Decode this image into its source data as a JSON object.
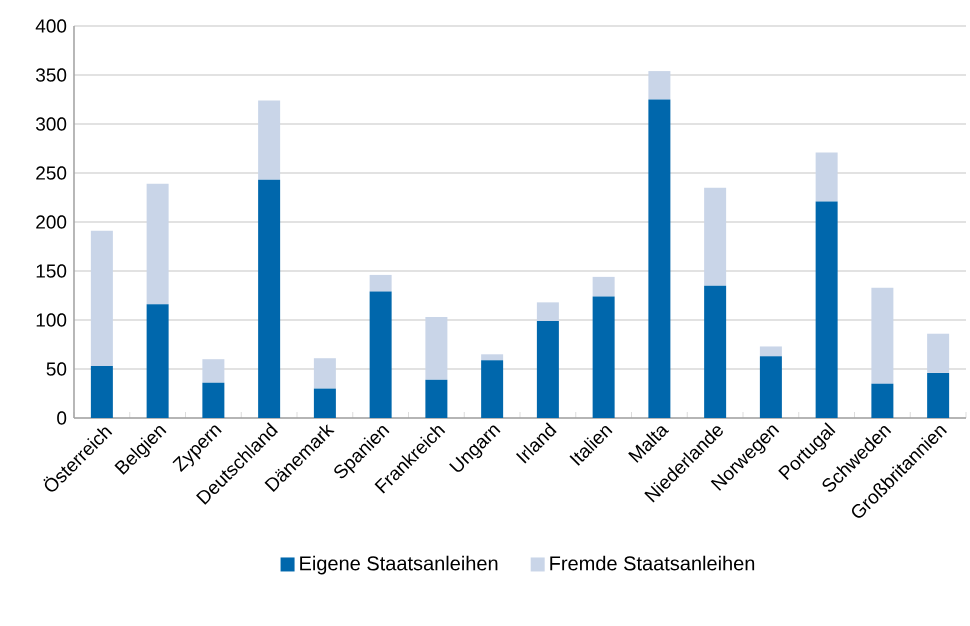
{
  "chart_data": {
    "type": "bar",
    "stacked": true,
    "categories": [
      "Österreich",
      "Belgien",
      "Zypern",
      "Deutschland",
      "Dänemark",
      "Spanien",
      "Frankreich",
      "Ungarn",
      "Irland",
      "Italien",
      "Malta",
      "Niederlande",
      "Norwegen",
      "Portugal",
      "Schweden",
      "Großbritannien"
    ],
    "series": [
      {
        "name": "Eigene Staatsanleihen",
        "color": "#0067ac",
        "values": [
          53,
          116,
          36,
          243,
          30,
          129,
          39,
          59,
          99,
          124,
          325,
          135,
          63,
          221,
          35,
          46
        ]
      },
      {
        "name": "Fremde Staatsanleihen",
        "color": "#c9d5e8",
        "values": [
          138,
          123,
          24,
          81,
          31,
          17,
          64,
          6,
          19,
          20,
          29,
          100,
          10,
          50,
          98,
          40
        ]
      }
    ],
    "ylim": [
      0,
      400
    ],
    "yticks": [
      0,
      50,
      100,
      150,
      200,
      250,
      300,
      350,
      400
    ],
    "grid": "y",
    "legend": "bottom"
  }
}
